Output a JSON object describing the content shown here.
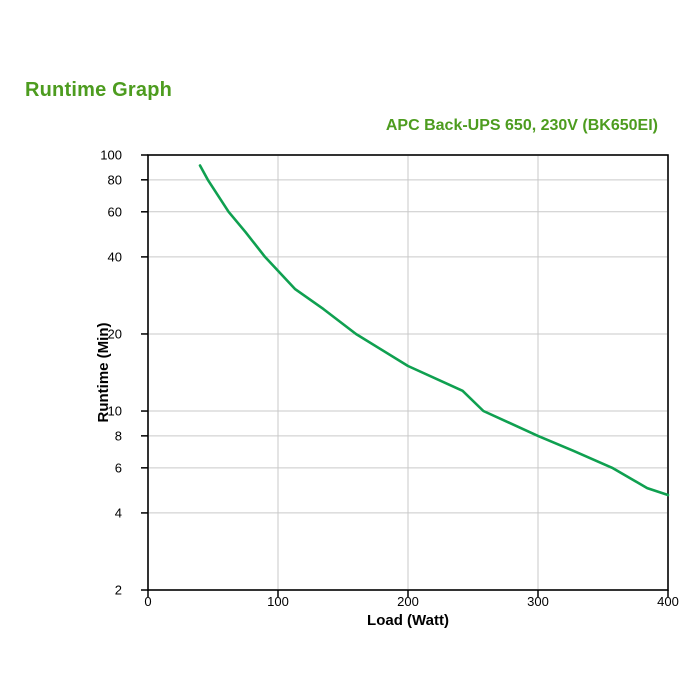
{
  "page": {
    "title": "Runtime Graph",
    "background_color": "#ffffff",
    "heading_color": "#4d9c1f"
  },
  "chart_data": {
    "type": "line",
    "title": "APC Back-UPS 650, 230V (BK650EI)",
    "xlabel": "Load (Watt)",
    "ylabel": "Runtime (Min)",
    "x_axis": {
      "scale": "linear",
      "min": 0,
      "max": 400,
      "ticks": [
        0,
        100,
        200,
        300,
        400
      ],
      "gridlines": [
        100,
        200,
        300
      ]
    },
    "y_axis": {
      "scale": "log",
      "min": 2,
      "max": 100,
      "ticks": [
        100,
        80,
        60,
        40,
        20,
        10,
        8,
        6,
        4,
        2
      ],
      "gridlines": [
        80,
        60,
        40,
        20,
        10,
        8,
        6,
        4
      ]
    },
    "legend": "none",
    "series": [
      {
        "name": "runtime-vs-load",
        "color": "#0fa050",
        "points": [
          [
            40,
            91
          ],
          [
            46,
            80
          ],
          [
            62,
            60
          ],
          [
            75,
            50
          ],
          [
            90,
            40
          ],
          [
            113,
            30
          ],
          [
            135,
            25
          ],
          [
            160,
            20
          ],
          [
            200,
            15
          ],
          [
            242,
            12
          ],
          [
            258,
            10
          ],
          [
            300,
            8
          ],
          [
            327,
            7
          ],
          [
            357,
            6
          ],
          [
            384,
            5
          ],
          [
            400,
            4.7
          ]
        ]
      }
    ],
    "colors": {
      "grid": "#c9c9c9",
      "axis": "#000000",
      "tick_label": "#000000"
    }
  }
}
